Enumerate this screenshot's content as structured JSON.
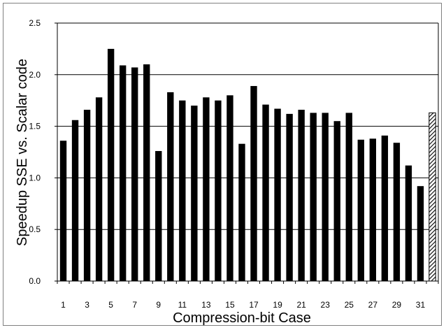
{
  "chart_data": {
    "type": "bar",
    "title": "",
    "xlabel": "Compression-bit Case",
    "ylabel": "Speedup SSE vs. Scalar code",
    "ylim": [
      0,
      2.5
    ],
    "yticks": [
      "0.0",
      "0.5",
      "1.0",
      "1.5",
      "2.0",
      "2.5"
    ],
    "ytick_values": [
      0,
      0.5,
      1.0,
      1.5,
      2.0,
      2.5
    ],
    "xtick_labels": [
      "1",
      "3",
      "5",
      "7",
      "9",
      "11",
      "13",
      "15",
      "17",
      "19",
      "21",
      "23",
      "25",
      "27",
      "29",
      "31"
    ],
    "grid": "horizontal",
    "legend": "none",
    "categories": [
      "1",
      "2",
      "3",
      "4",
      "5",
      "6",
      "7",
      "8",
      "9",
      "10",
      "11",
      "12",
      "13",
      "14",
      "15",
      "16",
      "17",
      "18",
      "19",
      "20",
      "21",
      "22",
      "23",
      "24",
      "25",
      "26",
      "27",
      "28",
      "29",
      "30",
      "31",
      "32"
    ],
    "values": [
      1.36,
      1.56,
      1.66,
      1.78,
      2.25,
      2.09,
      2.07,
      2.1,
      1.26,
      1.83,
      1.75,
      1.7,
      1.78,
      1.75,
      1.8,
      1.33,
      1.89,
      1.71,
      1.67,
      1.62,
      1.66,
      1.63,
      1.63,
      1.55,
      1.63,
      1.37,
      1.38,
      1.41,
      1.34,
      1.12,
      0.92,
      1.63
    ],
    "bar_fill": [
      "solid",
      "solid",
      "solid",
      "solid",
      "solid",
      "solid",
      "solid",
      "solid",
      "solid",
      "solid",
      "solid",
      "solid",
      "solid",
      "solid",
      "solid",
      "solid",
      "solid",
      "solid",
      "solid",
      "solid",
      "solid",
      "solid",
      "solid",
      "solid",
      "solid",
      "solid",
      "solid",
      "solid",
      "solid",
      "solid",
      "solid",
      "hatched"
    ],
    "colors": {
      "bar": "#000000",
      "grid": "#000000",
      "axis": "#000000"
    }
  }
}
